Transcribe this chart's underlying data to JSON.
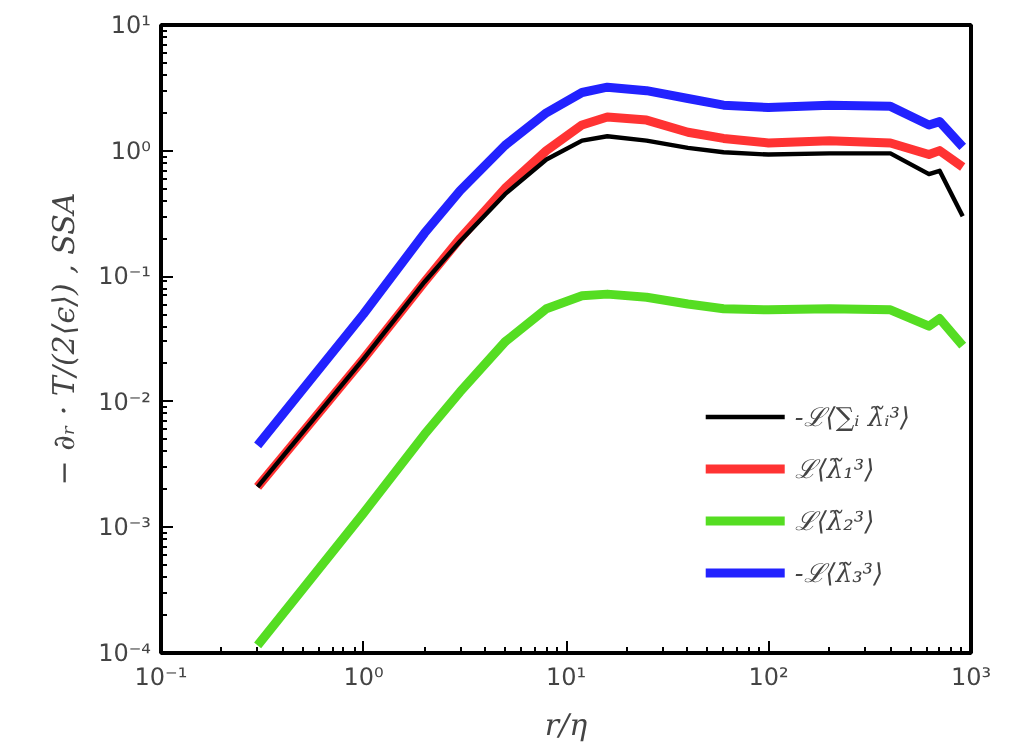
{
  "chart_data": {
    "type": "line",
    "xlabel": "r/η",
    "ylabel": "− ∂ᵣ · T/(2⟨ϵ⟩) , SSA",
    "log": "xy",
    "x": [
      0.3,
      1,
      2,
      3,
      5,
      8,
      12,
      16,
      25,
      40,
      60,
      100,
      200,
      400,
      620,
      700,
      910
    ],
    "series": [
      {
        "name": "-ℒ⟨∑ᵢ λ̃ᵢ³⟩",
        "color": "#000000",
        "values": [
          0.0021,
          0.022,
          0.09,
          0.19,
          0.45,
          0.85,
          1.2,
          1.3,
          1.2,
          1.05,
          0.97,
          0.93,
          0.95,
          0.95,
          0.65,
          0.69,
          0.3
        ]
      },
      {
        "name": "ℒ⟨λ̃₁³⟩",
        "color": "#ff3333",
        "values": [
          0.0021,
          0.022,
          0.09,
          0.2,
          0.5,
          1.0,
          1.6,
          1.85,
          1.75,
          1.4,
          1.25,
          1.15,
          1.2,
          1.15,
          0.93,
          1.0,
          0.74
        ]
      },
      {
        "name": "ℒ⟨λ̃₂³⟩",
        "color": "#55dd22",
        "values": [
          0.000115,
          0.0013,
          0.0055,
          0.012,
          0.03,
          0.055,
          0.07,
          0.072,
          0.068,
          0.06,
          0.055,
          0.054,
          0.055,
          0.054,
          0.04,
          0.046,
          0.028
        ]
      },
      {
        "name": "-ℒ⟨λ̃₃³⟩",
        "color": "#2222ff",
        "values": [
          0.0045,
          0.05,
          0.22,
          0.48,
          1.1,
          2.0,
          2.9,
          3.2,
          3.0,
          2.6,
          2.3,
          2.2,
          2.3,
          2.25,
          1.6,
          1.7,
          1.07
        ]
      }
    ],
    "xlim": [
      0.1,
      1000
    ],
    "ylim": [
      0.0001,
      10
    ],
    "xticks": [
      {
        "value": 0.1,
        "label": "10⁻¹"
      },
      {
        "value": 1,
        "label": "10⁰"
      },
      {
        "value": 10,
        "label": "10¹"
      },
      {
        "value": 100,
        "label": "10²"
      },
      {
        "value": 1000,
        "label": "10³"
      }
    ],
    "yticks": [
      {
        "value": 0.0001,
        "label": "10⁻⁴"
      },
      {
        "value": 0.001,
        "label": "10⁻³"
      },
      {
        "value": 0.01,
        "label": "10⁻²"
      },
      {
        "value": 0.1,
        "label": "10⁻¹"
      },
      {
        "value": 1,
        "label": "10⁰"
      },
      {
        "value": 10,
        "label": "10¹"
      }
    ],
    "grid": false,
    "legend": "bottom right",
    "line_style": "solid"
  }
}
